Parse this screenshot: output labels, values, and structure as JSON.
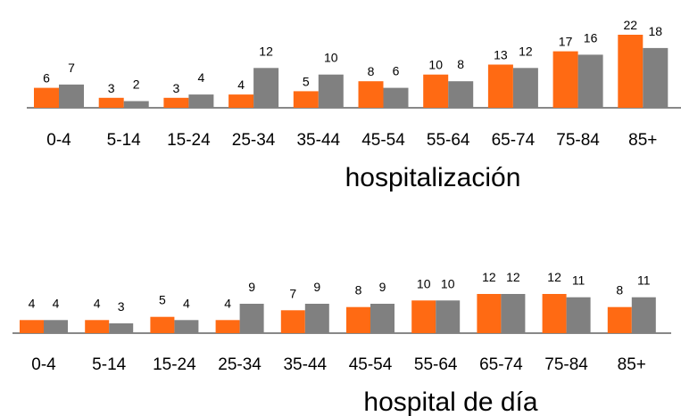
{
  "colors": {
    "series_a": "#ff6a13",
    "series_b": "#808080",
    "baseline": "#404040"
  },
  "chart_data": [
    {
      "type": "bar",
      "title": "hospitalización",
      "categories": [
        "0-4",
        "5-14",
        "15-24",
        "25-34",
        "35-44",
        "45-54",
        "55-64",
        "65-74",
        "75-84",
        "85+"
      ],
      "series": [
        {
          "values": [
            6,
            3,
            3,
            4,
            5,
            8,
            10,
            13,
            17,
            22
          ]
        },
        {
          "values": [
            7,
            2,
            4,
            12,
            10,
            6,
            8,
            12,
            16,
            18
          ]
        }
      ],
      "data_labels": true,
      "ylim": [
        0,
        22
      ],
      "grid": false,
      "legend": "none"
    },
    {
      "type": "bar",
      "title": "hospital de día",
      "categories": [
        "0-4",
        "5-14",
        "15-24",
        "25-34",
        "35-44",
        "45-54",
        "55-64",
        "65-74",
        "75-84",
        "85+"
      ],
      "series": [
        {
          "values": [
            4,
            4,
            5,
            4,
            7,
            8,
            10,
            12,
            12,
            8
          ]
        },
        {
          "values": [
            4,
            3,
            4,
            9,
            9,
            9,
            10,
            12,
            11,
            11
          ]
        }
      ],
      "data_labels": true,
      "ylim": [
        0,
        12
      ],
      "grid": false,
      "legend": "none"
    }
  ]
}
